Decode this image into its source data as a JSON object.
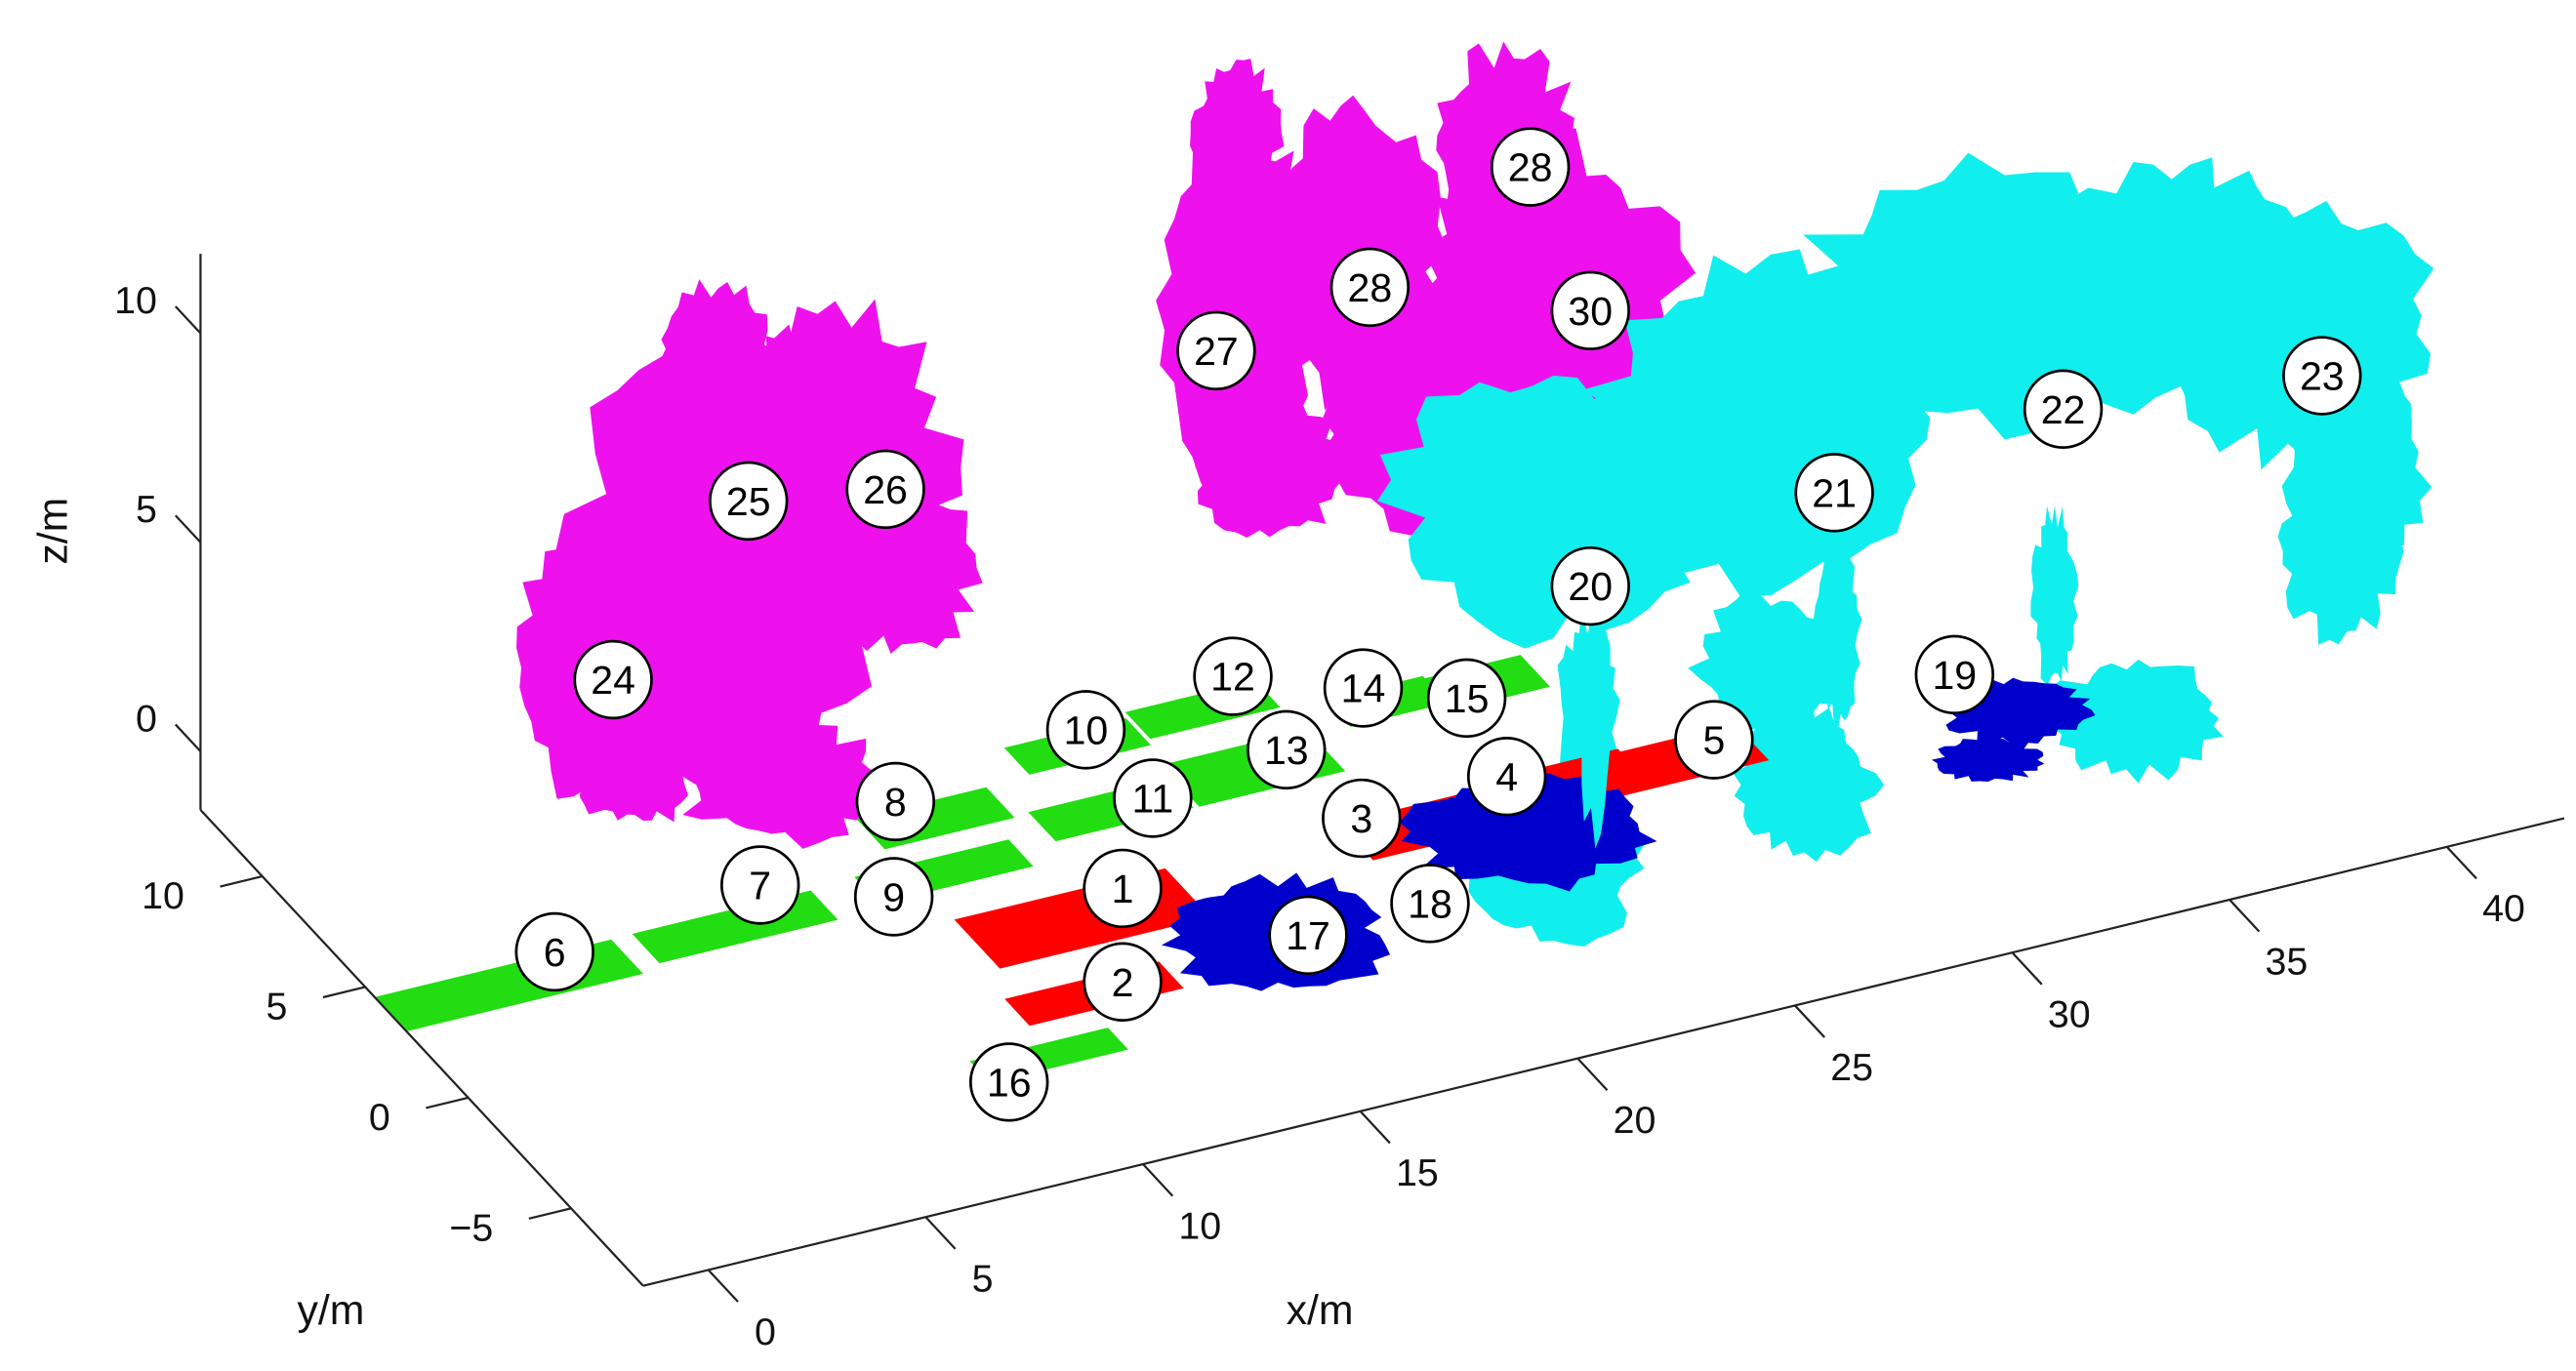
{
  "chart_data": {
    "type": "scatter3d",
    "xlabel": "x/m",
    "ylabel": "y/m",
    "zlabel": "z/m",
    "xlim": [
      -1.5,
      42.7
    ],
    "ylim": [
      -8.5,
      13
    ],
    "zlim": [
      -1.4,
      11.9
    ],
    "xticks": [
      0,
      5,
      10,
      15,
      20,
      25,
      30,
      35,
      40
    ],
    "yticks": [
      {
        "value": -5,
        "label": "−5"
      },
      0,
      5,
      10
    ],
    "zticks": [
      0,
      5,
      10
    ],
    "annotations": [
      "1",
      "2",
      "3",
      "4",
      "5",
      "6",
      "7",
      "8",
      "9",
      "10",
      "11",
      "12",
      "13",
      "14",
      "15",
      "16",
      "17",
      "18",
      "19",
      "20",
      "21",
      "22",
      "23",
      "24",
      "25",
      "26",
      "27",
      "28",
      "28",
      "30"
    ]
  }
}
